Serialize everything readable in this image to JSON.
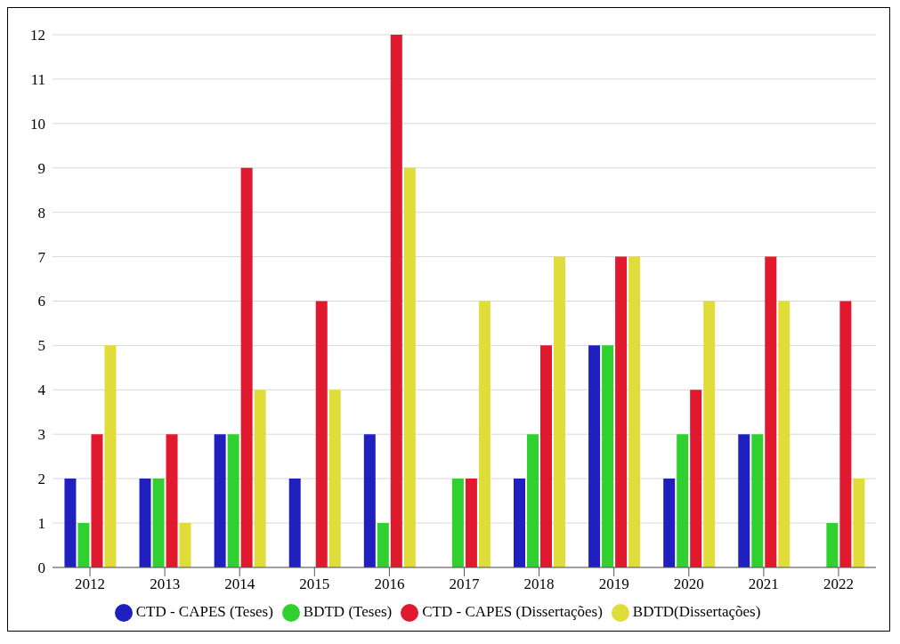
{
  "chart_data": {
    "type": "bar",
    "categories": [
      "2012",
      "2013",
      "2014",
      "2015",
      "2016",
      "2017",
      "2018",
      "2019",
      "2020",
      "2021",
      "2022"
    ],
    "series": [
      {
        "name": "CTD - CAPES (Teses)",
        "color": "#2020c0",
        "values": [
          2,
          2,
          3,
          2,
          3,
          0,
          2,
          5,
          2,
          3,
          0
        ]
      },
      {
        "name": "BDTD (Teses)",
        "color": "#30d030",
        "values": [
          1,
          2,
          3,
          0,
          1,
          2,
          3,
          5,
          3,
          3,
          1
        ]
      },
      {
        "name": "CTD - CAPES (Dissertações)",
        "color": "#e0192f",
        "values": [
          3,
          3,
          9,
          6,
          12,
          2,
          5,
          7,
          4,
          7,
          6
        ]
      },
      {
        "name": "BDTD(Dissertações)",
        "color": "#e0dc3a",
        "values": [
          5,
          1,
          4,
          4,
          9,
          6,
          7,
          7,
          6,
          6,
          2
        ]
      }
    ],
    "ylim": [
      0,
      12
    ],
    "yticks": [
      0,
      1,
      2,
      3,
      4,
      5,
      6,
      7,
      8,
      9,
      10,
      11,
      12
    ],
    "grid": "y",
    "legend": "bottom"
  }
}
